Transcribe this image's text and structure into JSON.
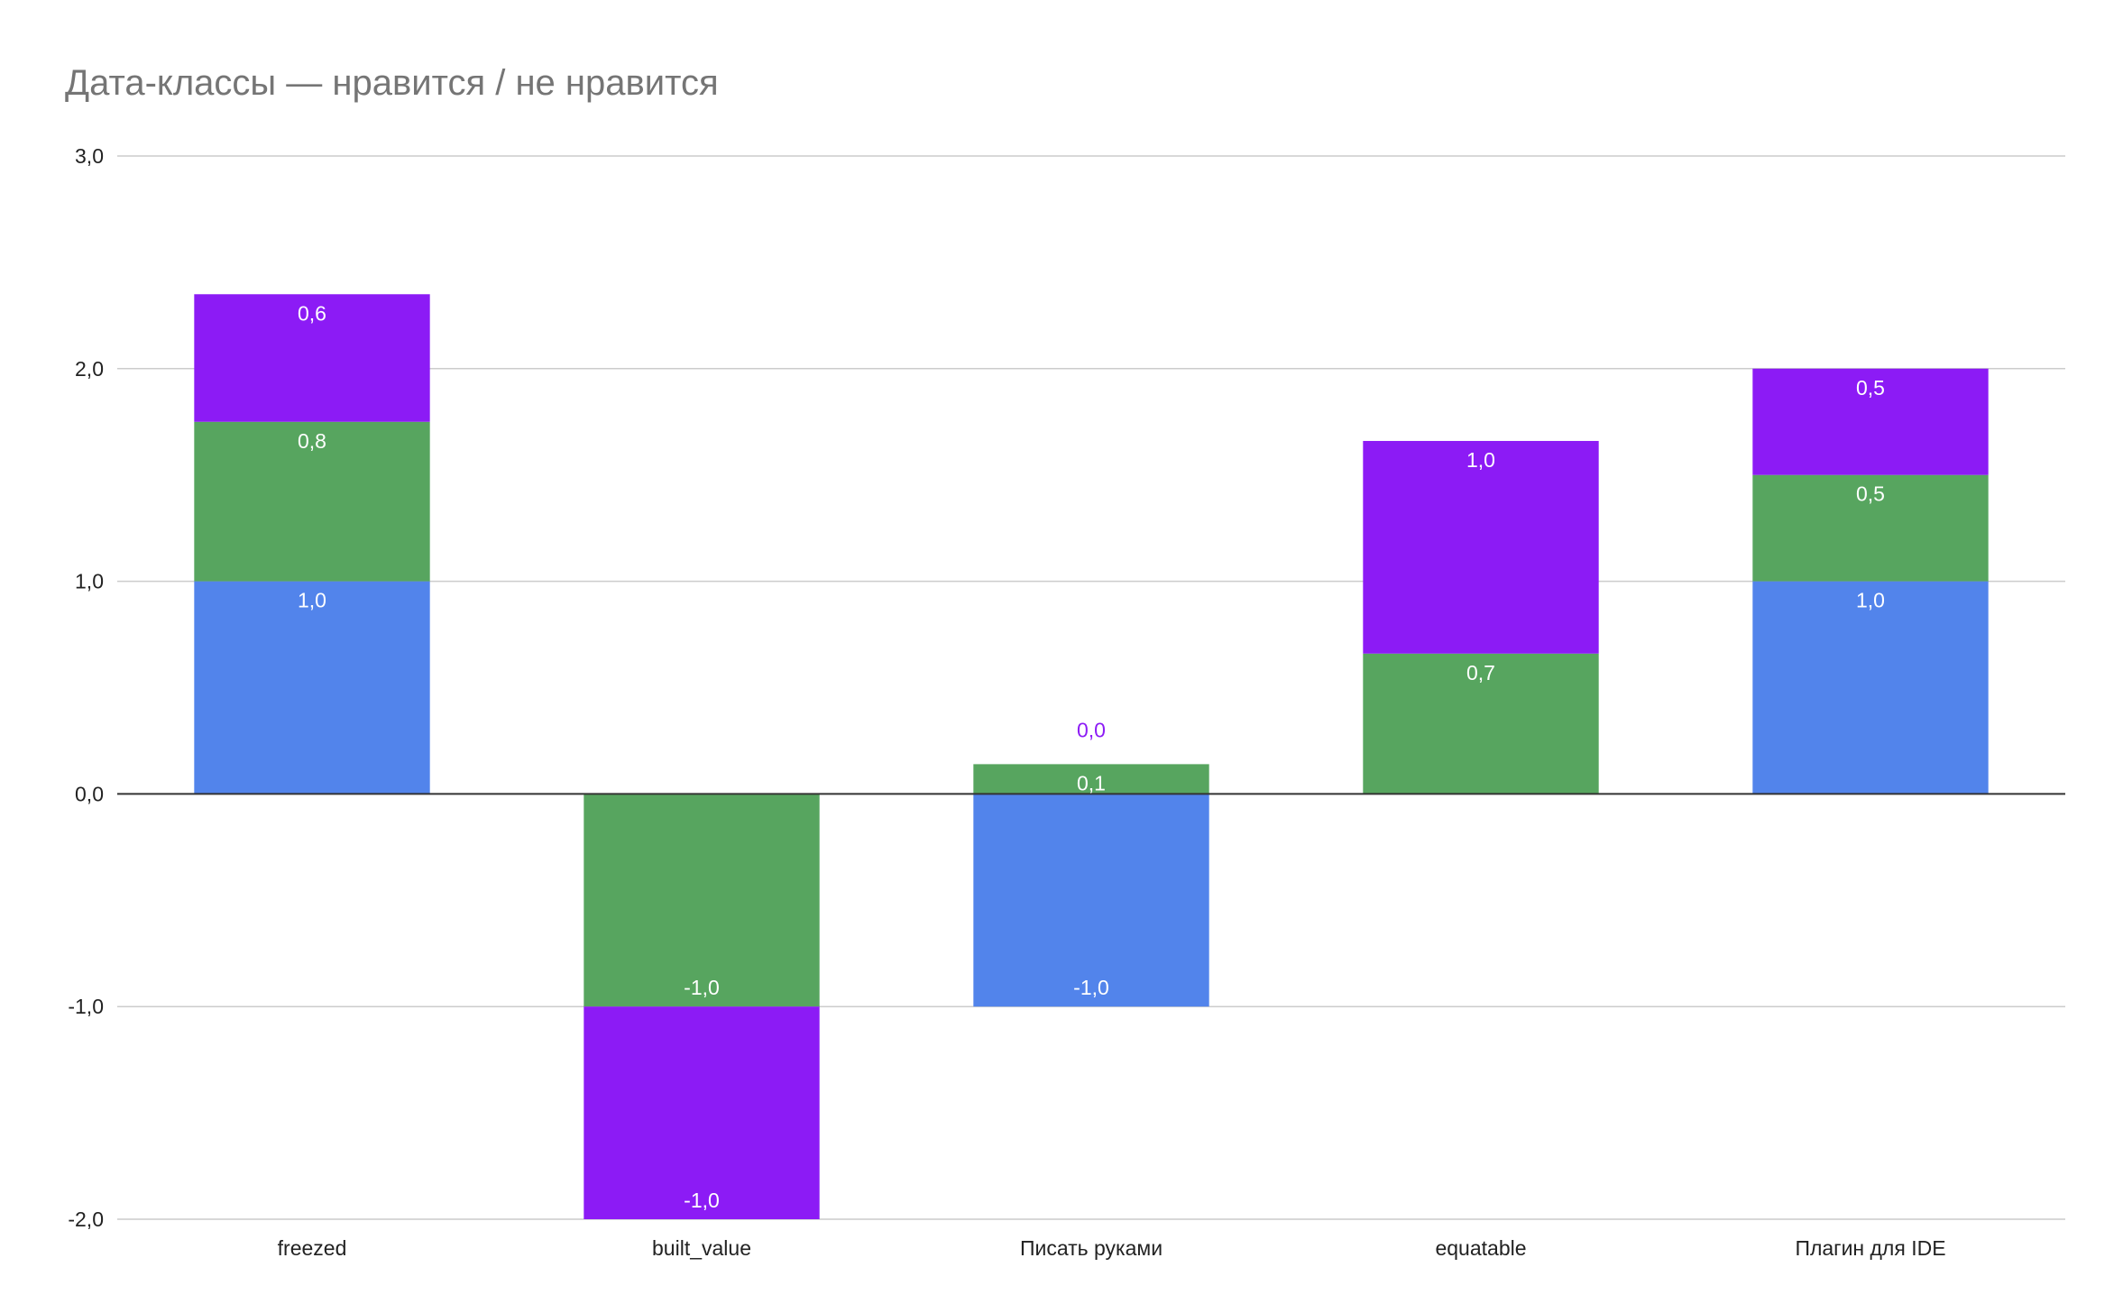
{
  "chart_data": {
    "type": "bar",
    "stacked": true,
    "title": "Дата-классы — нравится / не нравится",
    "xlabel": "",
    "ylabel": "",
    "categories": [
      "freezed",
      "built_value",
      "Писать руками",
      "equatable",
      "Плагин для IDE"
    ],
    "ylim": [
      -2.0,
      3.0
    ],
    "yticks": [
      "3,0",
      "2,0",
      "1,0",
      "0,0",
      "-1,0",
      "-2,0"
    ],
    "ytick_values": [
      3,
      2,
      1,
      0,
      -1,
      -2
    ],
    "grid": true,
    "legend": "none",
    "series": [
      {
        "color": "#5284eb",
        "values": [
          1.0,
          0,
          -1.0,
          0,
          1.0
        ],
        "labels": [
          "1,0",
          "",
          "-1,0",
          "",
          "1,0"
        ]
      },
      {
        "color": "#57a55f",
        "values": [
          0.75,
          -1.0,
          0.14,
          0.66,
          0.5
        ],
        "labels": [
          "0,8",
          "-1,0",
          "0,1",
          "0,7",
          "0,5"
        ]
      },
      {
        "color": "#8c1bf5",
        "values": [
          0.6,
          -1.0,
          0,
          1.0,
          0.5
        ],
        "labels": [
          "0,6",
          "-1,0",
          "0,0",
          "1,0",
          "0,5"
        ]
      }
    ]
  }
}
